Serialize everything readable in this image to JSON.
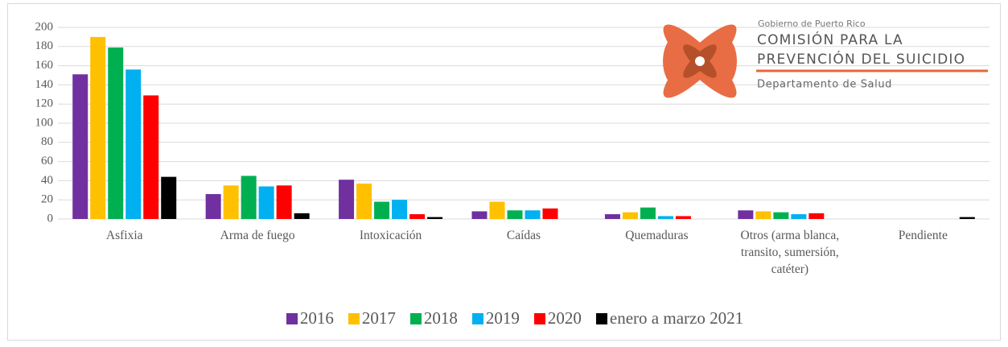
{
  "chart_data": {
    "type": "bar",
    "categories": [
      "Asfixia",
      "Arma de fuego",
      "Intoxicación",
      "Caídas",
      "Quemaduras",
      "Otros (arma blanca, transito, sumersión, catéter)",
      "Pendiente"
    ],
    "series": [
      {
        "name": "2016",
        "color": "#7030a0",
        "values": [
          151,
          26,
          41,
          8,
          5,
          9,
          0
        ]
      },
      {
        "name": "2017",
        "color": "#ffc000",
        "values": [
          190,
          35,
          37,
          18,
          7,
          8,
          0
        ]
      },
      {
        "name": "2018",
        "color": "#00b050",
        "values": [
          179,
          45,
          18,
          9,
          12,
          7,
          0
        ]
      },
      {
        "name": "2019",
        "color": "#00b0f0",
        "values": [
          156,
          34,
          20,
          9,
          3,
          5,
          0
        ]
      },
      {
        "name": "2020",
        "color": "#ff0000",
        "values": [
          129,
          35,
          5,
          11,
          3,
          6,
          0
        ]
      },
      {
        "name": "enero a marzo 2021",
        "color": "#000000",
        "values": [
          44,
          6,
          2,
          0,
          0,
          0,
          2
        ]
      }
    ],
    "ylim": [
      0,
      200
    ],
    "yticks": [
      0,
      20,
      40,
      60,
      80,
      100,
      120,
      140,
      160,
      180,
      200
    ],
    "grid": true,
    "legend": "bottom"
  },
  "logo": {
    "line1": "Gobierno de Puerto Rico",
    "line2": "COMISIÓN PARA LA",
    "line3": "PREVENCIÓN DEL SUICIDIO",
    "line4": "Departamento de Salud"
  }
}
